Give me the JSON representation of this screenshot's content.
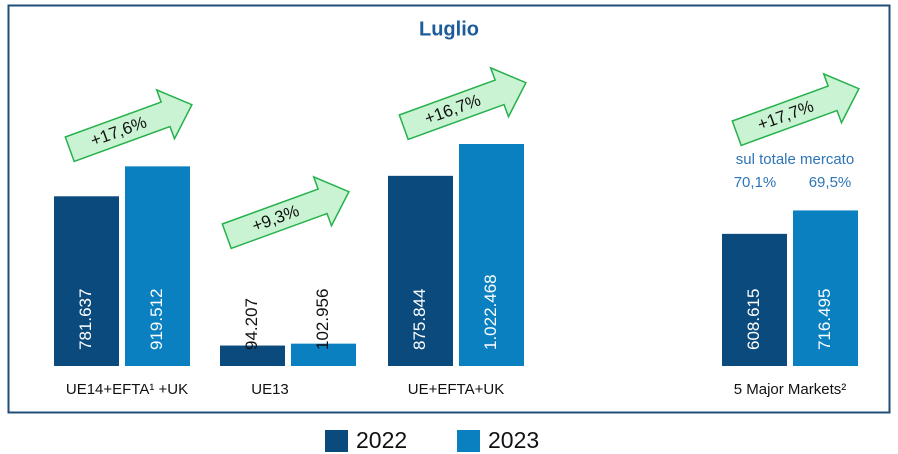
{
  "chart_data": {
    "type": "bar",
    "title": "Luglio",
    "categories": [
      "UE14+EFTA¹ +UK",
      "UE13",
      "UE+EFTA+UK",
      "5 Major Markets²"
    ],
    "series": [
      {
        "name": "2022",
        "color": "#0b4a7c",
        "values": [
          781637,
          94207,
          875844,
          608615
        ],
        "value_labels": [
          "781.637",
          "94.207",
          "875.844",
          "608.615"
        ]
      },
      {
        "name": "2023",
        "color": "#0a80c1",
        "values": [
          919512,
          102956,
          1022468,
          716495
        ],
        "value_labels": [
          "919.512",
          "102.956",
          "1.022.468",
          "716.495"
        ]
      }
    ],
    "growth_labels": [
      "+17,6%",
      "+9,3%",
      "+16,7%",
      "+17,7%"
    ],
    "share_note": {
      "label": "sul totale mercato",
      "values": [
        "70,1%",
        "69,5%"
      ]
    },
    "legend": "bottom"
  }
}
